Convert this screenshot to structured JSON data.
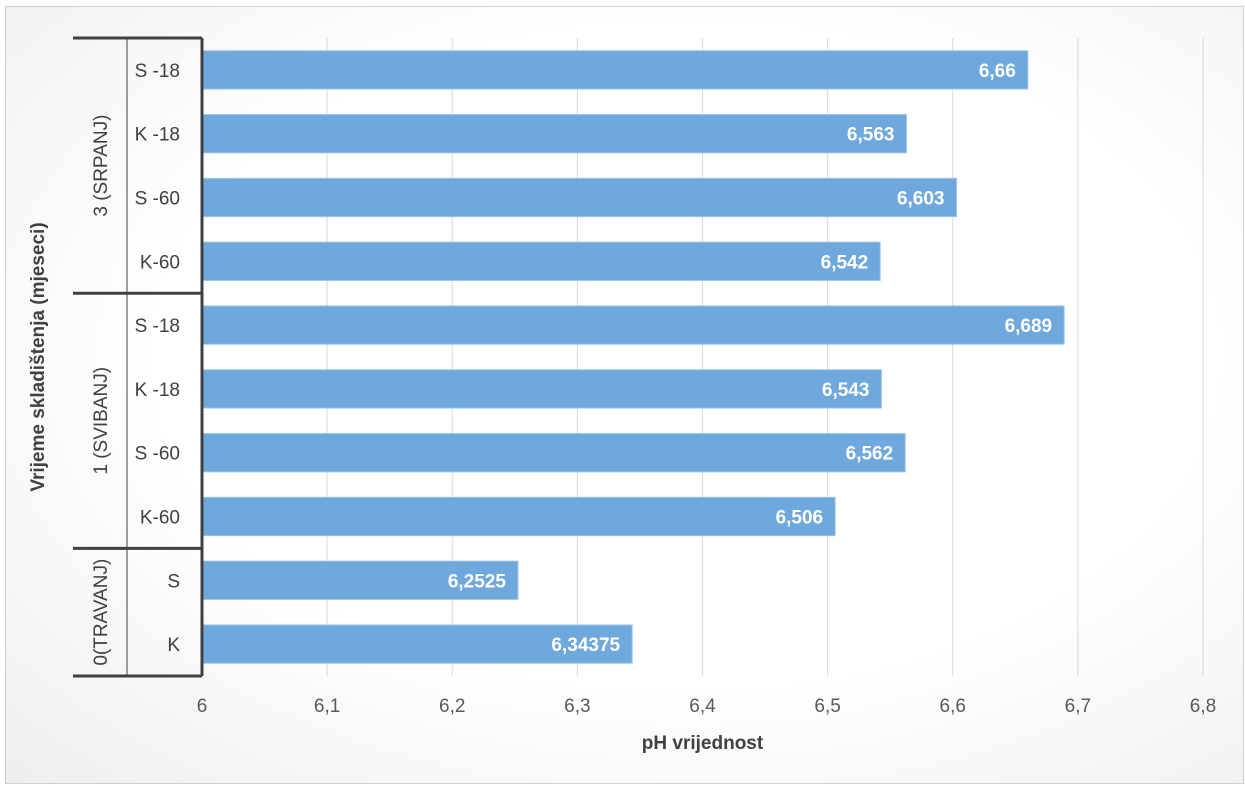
{
  "chart_data": {
    "type": "bar",
    "orientation": "horizontal",
    "title": "",
    "xlabel": "pH vrijednost",
    "ylabel": "Vrijeme skladištenja (mjeseci)",
    "xlim": [
      6,
      6.8
    ],
    "x_ticks": [
      "6",
      "6,1",
      "6,2",
      "6,3",
      "6,4",
      "6,5",
      "6,6",
      "6,7",
      "6,8"
    ],
    "grid": "vertical",
    "bar_color": "#6fa8dc",
    "groups": [
      {
        "label": "3 (SRPANJ)",
        "bars": [
          {
            "category": "S -18",
            "value": 6.66,
            "label": "6,66"
          },
          {
            "category": "K -18",
            "value": 6.563,
            "label": "6,563"
          },
          {
            "category": "S -60",
            "value": 6.603,
            "label": "6,603"
          },
          {
            "category": "K-60",
            "value": 6.542,
            "label": "6,542"
          }
        ]
      },
      {
        "label": "1 (SVIBANJ)",
        "bars": [
          {
            "category": "S -18",
            "value": 6.689,
            "label": "6,689"
          },
          {
            "category": "K -18",
            "value": 6.543,
            "label": "6,543"
          },
          {
            "category": "S -60",
            "value": 6.562,
            "label": "6,562"
          },
          {
            "category": "K-60",
            "value": 6.506,
            "label": "6,506"
          }
        ]
      },
      {
        "label": "0(TRAVANJ)",
        "bars": [
          {
            "category": "S",
            "value": 6.2525,
            "label": "6,2525"
          },
          {
            "category": "K",
            "value": 6.34375,
            "label": "6,34375"
          }
        ]
      }
    ]
  }
}
